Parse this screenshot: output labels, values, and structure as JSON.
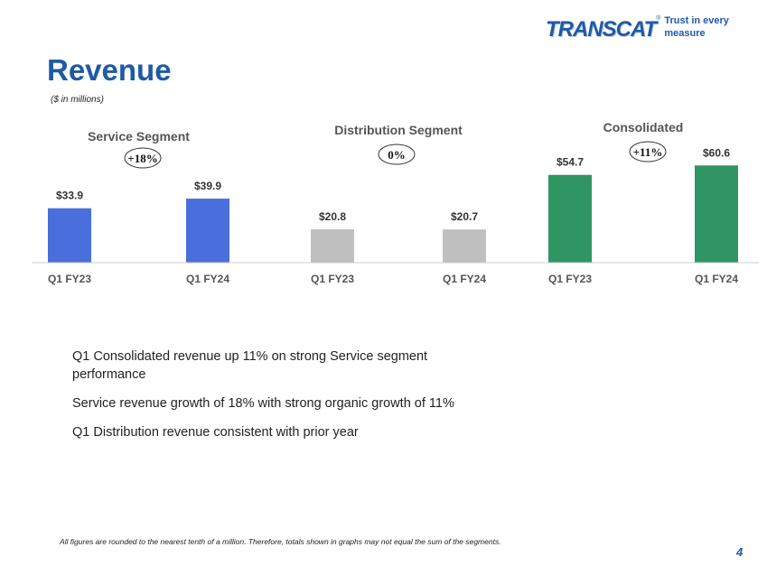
{
  "header": {
    "logo_text": "TRANSCAT",
    "logo_mark": "®",
    "tagline": "Trust in every measure",
    "title": "Revenue",
    "subtitle": "($ in millions)"
  },
  "colors": {
    "service": "#4a6fdc",
    "distribution": "#bfbfbf",
    "consolidated": "#2f9663",
    "title": "#1f5aa6"
  },
  "chart_data": {
    "type": "bar",
    "unit": "$ in millions",
    "groups": [
      {
        "name": "Service Segment",
        "growth": "+18%",
        "color": "#4a6fdc",
        "categories": [
          "Q1 FY23",
          "Q1 FY24"
        ],
        "values": [
          33.9,
          39.9
        ],
        "value_labels": [
          "$33.9",
          "$39.9"
        ]
      },
      {
        "name": "Distribution Segment",
        "growth": "0%",
        "color": "#bfbfbf",
        "categories": [
          "Q1 FY23",
          "Q1 FY24"
        ],
        "values": [
          20.8,
          20.7
        ],
        "value_labels": [
          "$20.8",
          "$20.7"
        ]
      },
      {
        "name": "Consolidated",
        "growth": "+11%",
        "color": "#2f9663",
        "categories": [
          "Q1 FY23",
          "Q1 FY24"
        ],
        "values": [
          54.7,
          60.6
        ],
        "value_labels": [
          "$54.7",
          "$60.6"
        ]
      }
    ],
    "grid": false,
    "legend": "none"
  },
  "bullets": [
    "Q1 Consolidated revenue up 11% on strong Service segment performance",
    "Service revenue growth of 18% with strong organic growth of 11%",
    "Q1 Distribution revenue consistent with prior year"
  ],
  "footnote": "All figures are rounded to the nearest tenth of a million. Therefore, totals shown in graphs may not equal the sum of the segments.",
  "page_number": "4"
}
